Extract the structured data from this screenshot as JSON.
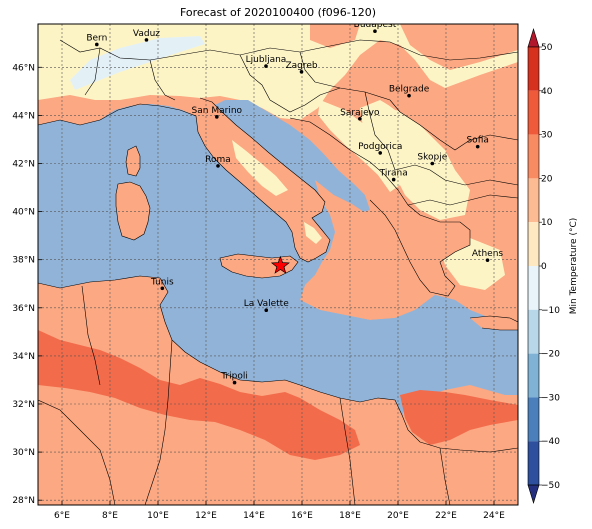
{
  "title": "Forecast of 2020100400 (f096-120)",
  "colors": {
    "sea": "#92b3d8",
    "warm": "#fca882",
    "hot": "#f26b4b",
    "mild": "#fdf4c6",
    "cool": "#e3f1f7",
    "border": "#000000"
  },
  "map": {
    "lon_ticks": [
      "6°E",
      "8°E",
      "10°E",
      "12°E",
      "14°E",
      "16°E",
      "18°E",
      "20°E",
      "22°E",
      "24°E"
    ],
    "lat_ticks": [
      "46°N",
      "44°N",
      "42°N",
      "40°N",
      "38°N",
      "36°N",
      "34°N",
      "32°N",
      "30°N",
      "28°N"
    ],
    "cities": [
      {
        "name": "Bern",
        "lon": 7.45,
        "lat": 46.95
      },
      {
        "name": "Vaduz",
        "lon": 9.52,
        "lat": 47.14
      },
      {
        "name": "Budapest",
        "lon": 19.04,
        "lat": 47.5
      },
      {
        "name": "Ljubljana",
        "lon": 14.5,
        "lat": 46.05
      },
      {
        "name": "Zagreb",
        "lon": 15.98,
        "lat": 45.81
      },
      {
        "name": "Belgrade",
        "lon": 20.46,
        "lat": 44.82
      },
      {
        "name": "San Marino",
        "lon": 12.45,
        "lat": 43.94
      },
      {
        "name": "Sarajevo",
        "lon": 18.41,
        "lat": 43.86
      },
      {
        "name": "Sofia",
        "lon": 23.32,
        "lat": 42.7
      },
      {
        "name": "Podgorica",
        "lon": 19.26,
        "lat": 42.44
      },
      {
        "name": "Skopje",
        "lon": 21.43,
        "lat": 42.0
      },
      {
        "name": "Roma",
        "lon": 12.5,
        "lat": 41.9
      },
      {
        "name": "Tirana",
        "lon": 19.82,
        "lat": 41.33
      },
      {
        "name": "Athens",
        "lon": 23.73,
        "lat": 37.98
      },
      {
        "name": "Tunis",
        "lon": 10.18,
        "lat": 36.81
      },
      {
        "name": "La Valette",
        "lon": 14.51,
        "lat": 35.9
      },
      {
        "name": "Tripoli",
        "lon": 13.19,
        "lat": 32.89
      }
    ],
    "marker": {
      "type": "star",
      "lon": 15.1,
      "lat": 37.75,
      "color": "#ff0000"
    }
  },
  "colorbar": {
    "label": "Min Temperature (°C)",
    "ticks": [
      "50",
      "40",
      "30",
      "20",
      "10",
      "0",
      "−10",
      "−20",
      "−30",
      "−40",
      "−50"
    ],
    "colors": [
      "#b2182b",
      "#d6301f",
      "#ee5a3a",
      "#f88b62",
      "#fcbb93",
      "#fde8c2",
      "#e8f4fa",
      "#b8d8ea",
      "#7fb2d5",
      "#4a7fbb",
      "#2d4f9e",
      "#24307f"
    ]
  }
}
